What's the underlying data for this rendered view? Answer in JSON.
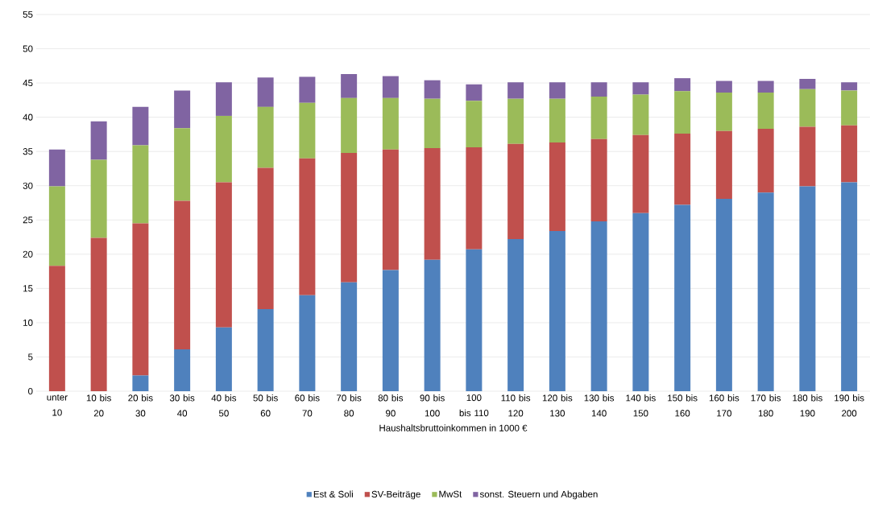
{
  "chart_data": {
    "type": "bar",
    "stacked": true,
    "xlabel": "Haushaltsbruttoinkommen in 1000 €",
    "categories": [
      "unter 10",
      "10 bis 20",
      "20 bis 30",
      "30 bis 40",
      "40 bis 50",
      "50 bis 60",
      "60 bis 70",
      "70 bis 80",
      "80 bis 90",
      "90 bis 100",
      "100 bis 110",
      "110 bis 120",
      "120 bis 130",
      "130 bis 140",
      "140 bis 150",
      "150 bis 160",
      "160 bis 170",
      "170 bis 180",
      "180 bis 190",
      "190 bis 200"
    ],
    "series": [
      {
        "name": "Est & Soli",
        "color": "#4f81bd",
        "values": [
          0,
          0,
          2.3,
          6.1,
          9.3,
          12.0,
          14.0,
          15.9,
          17.7,
          19.2,
          20.7,
          22.2,
          23.4,
          24.8,
          26.0,
          27.2,
          28.1,
          29.0,
          29.9,
          30.5
        ]
      },
      {
        "name": "SV-Beiträge",
        "color": "#c0504d",
        "values": [
          18.3,
          22.4,
          22.2,
          21.7,
          21.2,
          20.6,
          20.0,
          18.9,
          17.6,
          16.3,
          14.9,
          13.9,
          12.9,
          12.0,
          11.4,
          10.4,
          9.9,
          9.3,
          8.7,
          8.3
        ]
      },
      {
        "name": "MwSt",
        "color": "#9bbb59",
        "values": [
          11.6,
          11.4,
          11.4,
          10.6,
          9.7,
          8.9,
          8.1,
          8.0,
          7.5,
          7.2,
          6.8,
          6.6,
          6.4,
          6.2,
          5.9,
          6.2,
          5.6,
          5.3,
          5.5,
          5.1
        ]
      },
      {
        "name": "sonst. Steuern und Abgaben",
        "color": "#8064a2",
        "values": [
          5.4,
          5.6,
          5.6,
          5.5,
          4.9,
          4.3,
          3.8,
          3.5,
          3.2,
          2.7,
          2.4,
          2.4,
          2.4,
          2.1,
          1.8,
          1.9,
          1.7,
          1.7,
          1.5,
          1.2
        ]
      }
    ],
    "ylim": [
      0,
      55
    ],
    "yticks": [
      0,
      5,
      10,
      15,
      20,
      25,
      30,
      35,
      40,
      45,
      50,
      55
    ],
    "grid": "y",
    "legend": "bottom"
  }
}
